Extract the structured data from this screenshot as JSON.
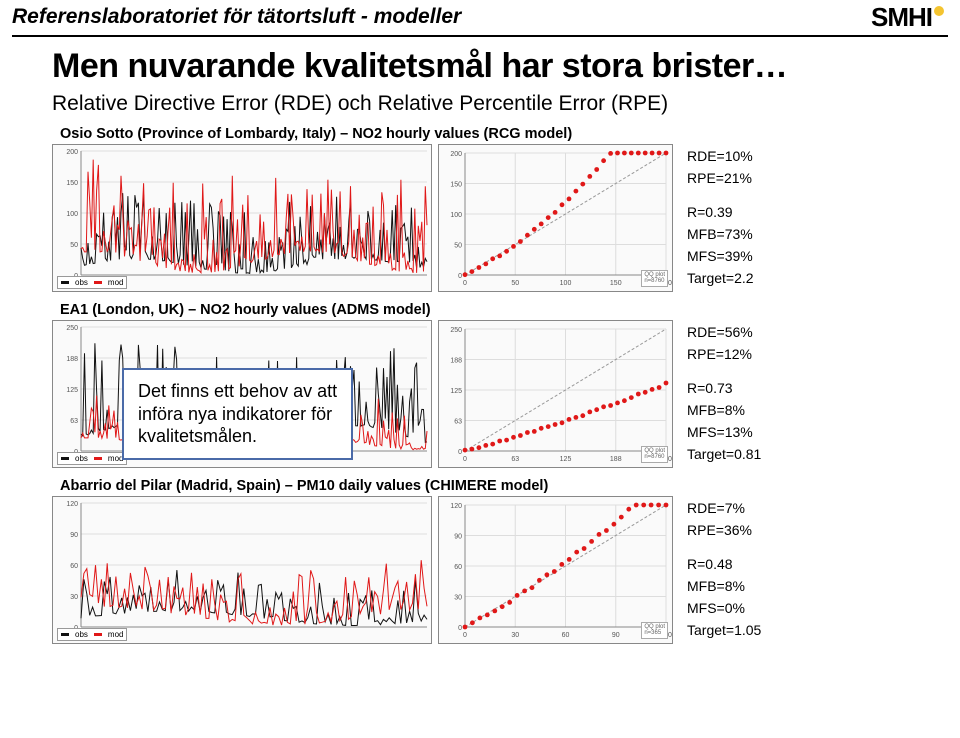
{
  "colors": {
    "series_red": "#e01818",
    "series_black": "#111111",
    "logo_yellow": "#f4c430",
    "callout_border": "#4a6aa8",
    "grid": "#dddddd",
    "axis": "#888888"
  },
  "header": {
    "title": "Referenslaboratoriet för tätortsluft - modeller",
    "logo_text": "SMHI"
  },
  "main_title": "Men nuvarande kvalitetsmål har stora brister…",
  "sub_title": "Relative Directive Error (RDE) och Relative Percentile Error (RPE)",
  "callout": {
    "line1": "Det finns ett behov av att",
    "line2": "införa nya indikatorer för",
    "line3": "kvalitetsmålen."
  },
  "chart_style": {
    "ts_width": 380,
    "qq_width": 235,
    "height": 148,
    "line_width_red": 1,
    "line_width_black": 1,
    "marker_size": 3
  },
  "panels": [
    {
      "title": "Osio Sotto (Province of Lombardy, Italy) – NO2 hourly values (RCG model)",
      "ts": {
        "xlim": [
          0,
          8760
        ],
        "ylim": [
          0,
          200
        ],
        "n": 200,
        "amp_red": 170,
        "amp_black": 120,
        "noise": 0.9,
        "density": 1.2
      },
      "qq": {
        "xlim": [
          0,
          200
        ],
        "ylim": [
          0,
          200
        ],
        "points": 30,
        "slope": 1.6,
        "curve": 0.5,
        "scatter": 3
      },
      "stats": {
        "RDE": "RDE=10%",
        "RPE": "RPE=21%",
        "R": "R=0.39",
        "MFB": "MFB=73%",
        "MFS": "MFS=39%",
        "Target": "Target=2.2"
      }
    },
    {
      "title": "EA1 (London, UK) – NO2 hourly values (ADMS model)",
      "ts": {
        "xlim": [
          0,
          8760
        ],
        "ylim": [
          0,
          250
        ],
        "n": 200,
        "amp_red": 120,
        "amp_black": 230,
        "noise": 0.8,
        "density": 1.0
      },
      "qq": {
        "xlim": [
          0,
          250
        ],
        "ylim": [
          0,
          250
        ],
        "points": 30,
        "slope": 0.55,
        "curve": 0.2,
        "scatter": 4
      },
      "stats": {
        "RDE": "RDE=56%",
        "RPE": "RPE=12%",
        "R": "R=0.73",
        "MFB": "MFB=8%",
        "MFS": "MFS=13%",
        "Target": "Target=0.81"
      }
    },
    {
      "title": "Abarrio del Pilar (Madrid, Spain) – PM10 daily values (CHIMERE model)",
      "ts": {
        "xlim": [
          0,
          365
        ],
        "ylim": [
          0,
          120
        ],
        "n": 120,
        "amp_red": 90,
        "amp_black": 70,
        "noise": 0.6,
        "density": 0.9
      },
      "qq": {
        "xlim": [
          0,
          120
        ],
        "ylim": [
          0,
          120
        ],
        "points": 28,
        "slope": 1.25,
        "curve": 0.3,
        "scatter": 3
      },
      "stats": {
        "RDE": "RDE=7%",
        "RPE": "RPE=36%",
        "R": "R=0.48",
        "MFB": "MFB=8%",
        "MFS": "MFS=0%",
        "Target": "Target=1.05"
      }
    }
  ]
}
